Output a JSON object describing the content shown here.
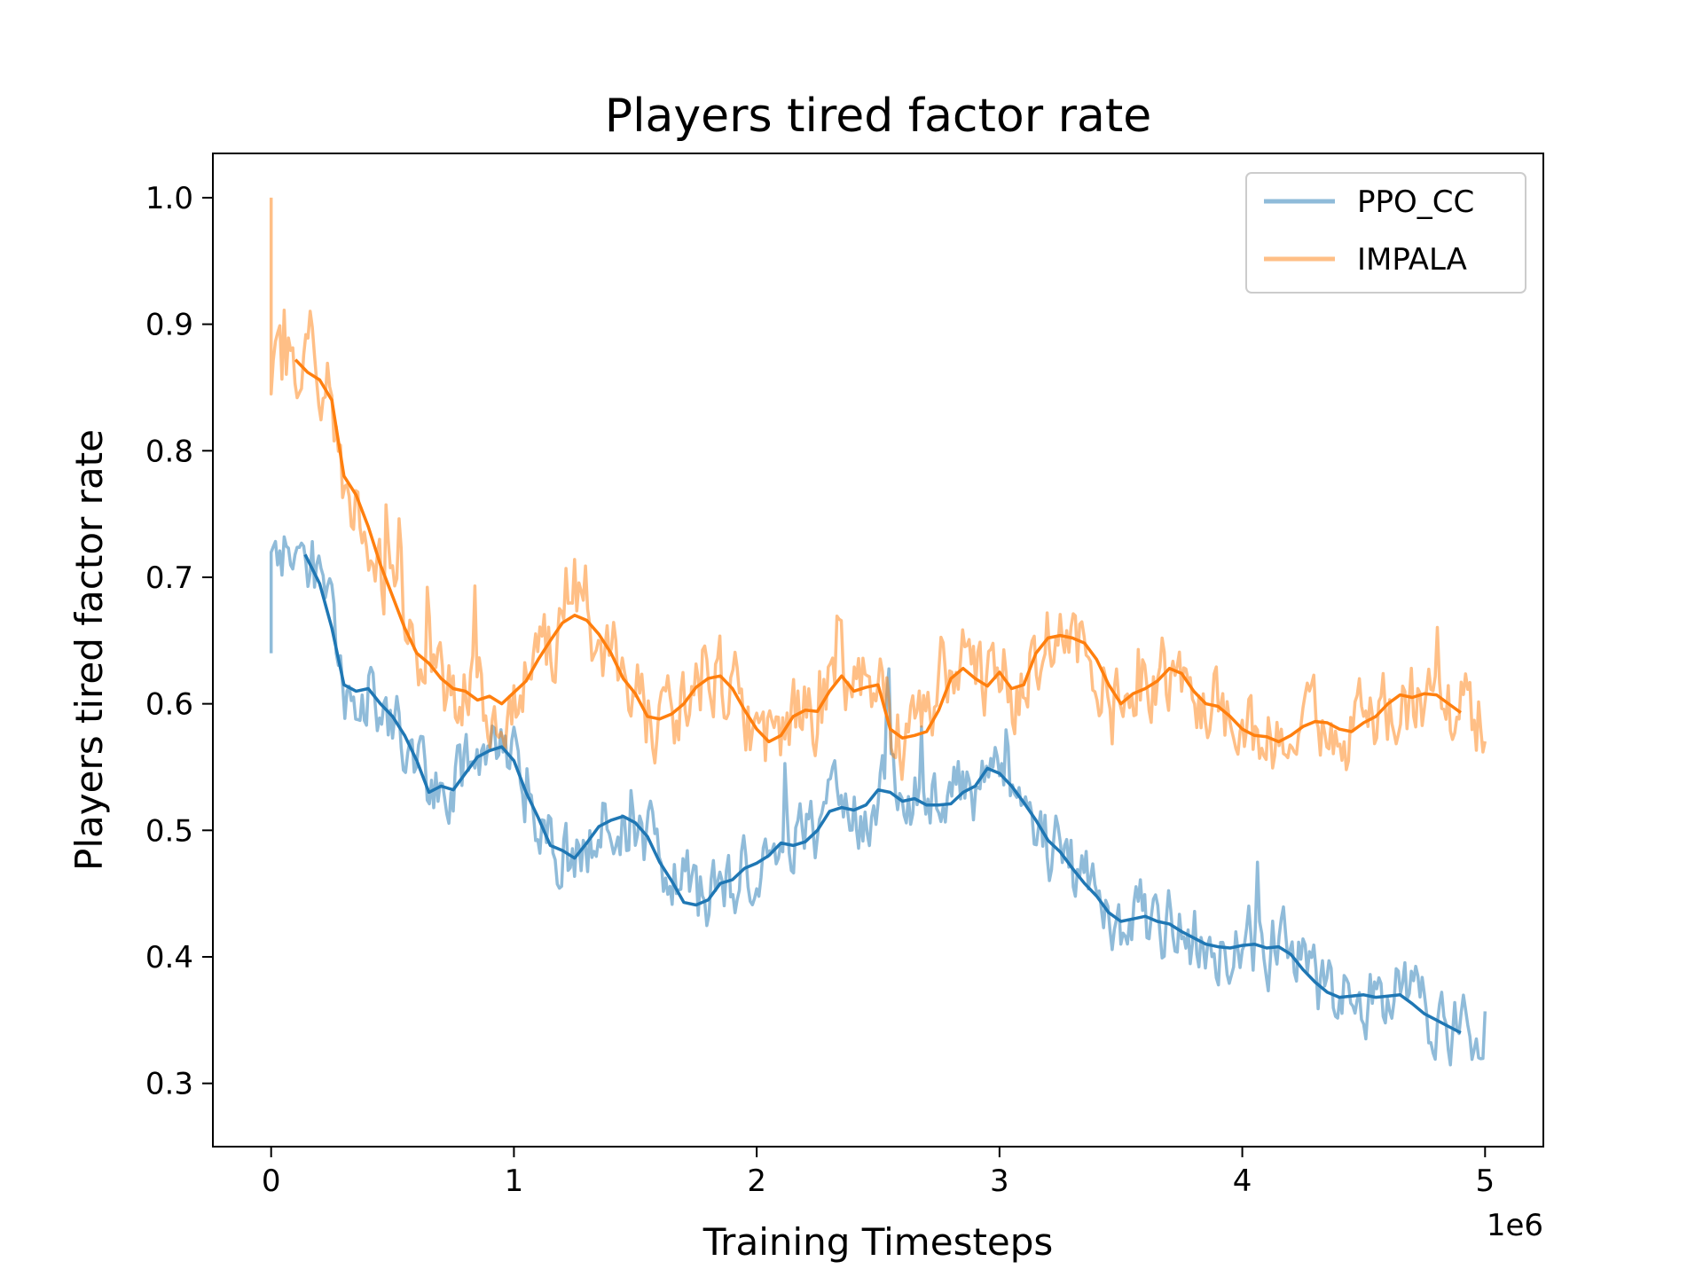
{
  "chart_data": {
    "type": "line",
    "title": "Players tired factor rate",
    "xlabel": "Training Timesteps",
    "ylabel": "Players tired factor rate",
    "x_scale_label": "1e6",
    "xlim": [
      -0.24,
      5.24
    ],
    "ylim": [
      0.25,
      1.035
    ],
    "x_ticks": [
      0,
      1,
      2,
      3,
      4,
      5
    ],
    "x_tick_labels": [
      "0",
      "1",
      "2",
      "3",
      "4",
      "5"
    ],
    "y_ticks": [
      0.3,
      0.4,
      0.5,
      0.6,
      0.7,
      0.8,
      0.9,
      1.0
    ],
    "y_tick_labels": [
      "0.3",
      "0.4",
      "0.5",
      "0.6",
      "0.7",
      "0.8",
      "0.9",
      "1.0"
    ],
    "grid": false,
    "legend_position": "top-right",
    "series": [
      {
        "name": "PPO_CC",
        "color": "#1f77b4",
        "raw_alpha": 0.5,
        "smooth_x": [
          0.14,
          0.2,
          0.25,
          0.3,
          0.35,
          0.4,
          0.45,
          0.5,
          0.55,
          0.6,
          0.65,
          0.7,
          0.75,
          0.8,
          0.85,
          0.9,
          0.95,
          1.0,
          1.05,
          1.1,
          1.15,
          1.2,
          1.25,
          1.3,
          1.35,
          1.4,
          1.45,
          1.5,
          1.55,
          1.6,
          1.65,
          1.7,
          1.75,
          1.8,
          1.85,
          1.9,
          1.95,
          2.0,
          2.05,
          2.1,
          2.15,
          2.2,
          2.25,
          2.3,
          2.35,
          2.4,
          2.45,
          2.5,
          2.55,
          2.6,
          2.65,
          2.7,
          2.75,
          2.8,
          2.85,
          2.9,
          2.95,
          3.0,
          3.05,
          3.1,
          3.15,
          3.2,
          3.25,
          3.3,
          3.35,
          3.4,
          3.45,
          3.5,
          3.55,
          3.6,
          3.65,
          3.7,
          3.75,
          3.8,
          3.85,
          3.9,
          3.95,
          4.0,
          4.05,
          4.1,
          4.15,
          4.2,
          4.25,
          4.3,
          4.35,
          4.4,
          4.45,
          4.5,
          4.55,
          4.6,
          4.65,
          4.7,
          4.75,
          4.8,
          4.85,
          4.9
        ],
        "smooth_y": [
          0.718,
          0.695,
          0.66,
          0.615,
          0.61,
          0.612,
          0.6,
          0.59,
          0.575,
          0.555,
          0.53,
          0.535,
          0.532,
          0.545,
          0.558,
          0.563,
          0.566,
          0.555,
          0.53,
          0.51,
          0.488,
          0.484,
          0.478,
          0.49,
          0.503,
          0.508,
          0.511,
          0.506,
          0.495,
          0.475,
          0.46,
          0.443,
          0.441,
          0.445,
          0.458,
          0.461,
          0.47,
          0.474,
          0.48,
          0.49,
          0.488,
          0.491,
          0.5,
          0.515,
          0.518,
          0.516,
          0.52,
          0.532,
          0.53,
          0.523,
          0.525,
          0.52,
          0.52,
          0.521,
          0.53,
          0.535,
          0.549,
          0.545,
          0.535,
          0.522,
          0.508,
          0.492,
          0.483,
          0.47,
          0.458,
          0.448,
          0.435,
          0.428,
          0.43,
          0.432,
          0.428,
          0.426,
          0.42,
          0.415,
          0.41,
          0.408,
          0.407,
          0.409,
          0.41,
          0.407,
          0.408,
          0.402,
          0.39,
          0.38,
          0.372,
          0.368,
          0.369,
          0.37,
          0.368,
          0.369,
          0.37,
          0.363,
          0.355,
          0.35,
          0.345,
          0.34
        ]
      },
      {
        "name": "IMPALA",
        "color": "#ff7f0e",
        "raw_alpha": 0.5,
        "smooth_x": [
          0.1,
          0.15,
          0.2,
          0.25,
          0.3,
          0.35,
          0.4,
          0.45,
          0.5,
          0.55,
          0.6,
          0.65,
          0.7,
          0.75,
          0.8,
          0.85,
          0.9,
          0.95,
          1.0,
          1.05,
          1.1,
          1.15,
          1.2,
          1.25,
          1.3,
          1.35,
          1.4,
          1.45,
          1.5,
          1.55,
          1.6,
          1.65,
          1.7,
          1.75,
          1.8,
          1.85,
          1.9,
          1.95,
          2.0,
          2.05,
          2.1,
          2.15,
          2.2,
          2.25,
          2.3,
          2.35,
          2.4,
          2.45,
          2.5,
          2.55,
          2.6,
          2.65,
          2.7,
          2.75,
          2.8,
          2.85,
          2.9,
          2.95,
          3.0,
          3.05,
          3.1,
          3.15,
          3.2,
          3.25,
          3.3,
          3.35,
          3.4,
          3.45,
          3.5,
          3.55,
          3.6,
          3.65,
          3.7,
          3.75,
          3.8,
          3.85,
          3.9,
          3.95,
          4.0,
          4.05,
          4.1,
          4.15,
          4.2,
          4.25,
          4.3,
          4.35,
          4.4,
          4.45,
          4.5,
          4.55,
          4.6,
          4.65,
          4.7,
          4.75,
          4.8,
          4.85,
          4.9
        ],
        "smooth_y": [
          0.872,
          0.862,
          0.856,
          0.84,
          0.78,
          0.765,
          0.74,
          0.71,
          0.685,
          0.66,
          0.64,
          0.632,
          0.62,
          0.612,
          0.61,
          0.603,
          0.606,
          0.6,
          0.609,
          0.618,
          0.635,
          0.65,
          0.664,
          0.67,
          0.666,
          0.655,
          0.64,
          0.62,
          0.608,
          0.59,
          0.588,
          0.592,
          0.6,
          0.613,
          0.62,
          0.622,
          0.612,
          0.595,
          0.58,
          0.57,
          0.575,
          0.59,
          0.595,
          0.594,
          0.61,
          0.622,
          0.61,
          0.613,
          0.615,
          0.58,
          0.573,
          0.575,
          0.578,
          0.595,
          0.62,
          0.628,
          0.62,
          0.614,
          0.625,
          0.612,
          0.615,
          0.64,
          0.652,
          0.654,
          0.652,
          0.648,
          0.635,
          0.615,
          0.6,
          0.608,
          0.612,
          0.618,
          0.628,
          0.624,
          0.61,
          0.6,
          0.598,
          0.59,
          0.58,
          0.575,
          0.574,
          0.57,
          0.575,
          0.582,
          0.586,
          0.585,
          0.58,
          0.578,
          0.585,
          0.59,
          0.6,
          0.607,
          0.605,
          0.608,
          0.607,
          0.6,
          0.593
        ]
      }
    ]
  }
}
